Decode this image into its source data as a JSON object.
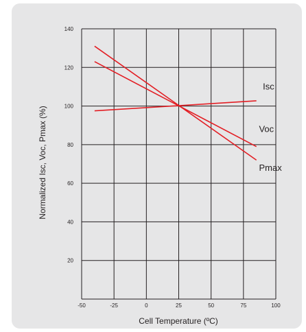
{
  "chart_data": {
    "type": "line",
    "title": "",
    "xlabel": "Cell Temperature (ºC)",
    "ylabel": "Normalized Isc, Voc, Pmax (%)",
    "xlim": [
      -50,
      100
    ],
    "ylim": [
      0,
      140
    ],
    "xticks": [
      -50,
      -25,
      0,
      25,
      50,
      75,
      100
    ],
    "yticks": [
      20,
      40,
      60,
      80,
      100,
      120,
      140
    ],
    "xtick_labels": [
      "-50",
      "-25",
      "0",
      "25",
      "50",
      "75",
      "100"
    ],
    "ytick_labels": [
      "20",
      "40",
      "60",
      "80",
      "100",
      "120",
      "140"
    ],
    "grid": true,
    "line_color": "#e31e24",
    "series": [
      {
        "name": "Isc",
        "x": [
          -40,
          85
        ],
        "y": [
          97.5,
          102.7
        ],
        "label_at": [
          90,
          108.5
        ]
      },
      {
        "name": "Voc",
        "x": [
          -40,
          85
        ],
        "y": [
          123,
          79
        ],
        "label_at": [
          87,
          86.5
        ]
      },
      {
        "name": "Pmax",
        "x": [
          -40,
          85
        ],
        "y": [
          131,
          72
        ],
        "label_at": [
          87,
          66.5
        ]
      }
    ]
  }
}
